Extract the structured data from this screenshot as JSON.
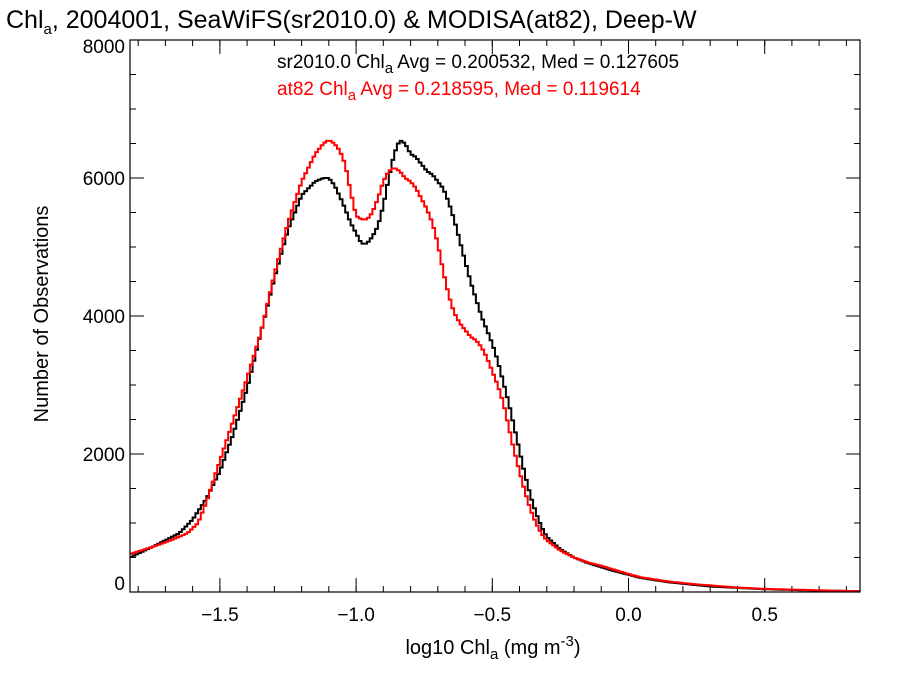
{
  "chart_data": {
    "type": "line",
    "title": {
      "pre": "Chl",
      "sub": "a",
      "post": ", 2004001, SeaWiFS(sr2010.0) & MODISA(at82), Deep-W"
    },
    "xlabel": {
      "pre": "log10 Chl",
      "sub": "a",
      "mid": " (mg m",
      "sup": "-3",
      "post": ")"
    },
    "ylabel": "Number of Observations",
    "xlim": [
      -1.83,
      0.85
    ],
    "ylim": [
      0,
      8000
    ],
    "x_ticks": [
      {
        "value": -1.5,
        "label": "−1.5"
      },
      {
        "value": -1.0,
        "label": "−1.0"
      },
      {
        "value": -0.5,
        "label": "−0.5"
      },
      {
        "value": 0.0,
        "label": "0.0"
      },
      {
        "value": 0.5,
        "label": "0.5"
      }
    ],
    "y_ticks": [
      {
        "value": 0,
        "label": "0"
      },
      {
        "value": 2000,
        "label": "2000"
      },
      {
        "value": 4000,
        "label": "4000"
      },
      {
        "value": 6000,
        "label": "6000"
      },
      {
        "value": 8000,
        "label": "8000"
      }
    ],
    "x_minor_step": 0.1,
    "y_minor_step": 500,
    "grid": false,
    "legend_position": "top-right",
    "series": [
      {
        "color": "#000000",
        "legend": {
          "pre": "sr2010.0 Chl",
          "sub": "a",
          "post": " Avg = 0.200532, Med = 0.127605"
        },
        "x": [
          -1.83,
          -1.75,
          -1.65,
          -1.6,
          -1.55,
          -1.5,
          -1.45,
          -1.4,
          -1.35,
          -1.3,
          -1.25,
          -1.2,
          -1.15,
          -1.12,
          -1.1,
          -1.08,
          -1.05,
          -1.02,
          -1.0,
          -0.98,
          -0.96,
          -0.94,
          -0.92,
          -0.9,
          -0.88,
          -0.86,
          -0.84,
          -0.82,
          -0.8,
          -0.78,
          -0.76,
          -0.74,
          -0.72,
          -0.7,
          -0.68,
          -0.66,
          -0.64,
          -0.62,
          -0.6,
          -0.58,
          -0.56,
          -0.54,
          -0.52,
          -0.5,
          -0.48,
          -0.46,
          -0.44,
          -0.42,
          -0.4,
          -0.38,
          -0.36,
          -0.34,
          -0.32,
          -0.3,
          -0.25,
          -0.2,
          -0.15,
          -0.1,
          -0.05,
          0.0,
          0.05,
          0.1,
          0.15,
          0.2,
          0.25,
          0.3,
          0.35,
          0.4,
          0.45,
          0.5,
          0.55,
          0.6,
          0.65,
          0.7,
          0.75,
          0.8,
          0.85
        ],
        "y": [
          500,
          650,
          850,
          1050,
          1350,
          1750,
          2300,
          2950,
          3750,
          4550,
          5250,
          5750,
          5950,
          6000,
          6000,
          5900,
          5650,
          5350,
          5200,
          5050,
          5050,
          5150,
          5300,
          5600,
          6000,
          6350,
          6550,
          6500,
          6350,
          6300,
          6200,
          6100,
          6050,
          5950,
          5850,
          5650,
          5400,
          5100,
          4800,
          4500,
          4250,
          4000,
          3800,
          3600,
          3350,
          3050,
          2750,
          2400,
          2050,
          1700,
          1400,
          1150,
          950,
          800,
          620,
          500,
          420,
          360,
          300,
          250,
          200,
          170,
          140,
          120,
          100,
          80,
          70,
          60,
          50,
          40,
          35,
          30,
          25,
          20,
          18,
          15,
          12
        ]
      },
      {
        "color": "#ff0000",
        "legend": {
          "pre": "at82 Chl",
          "sub": "a",
          "post": " Avg = 0.218595, Med = 0.119614"
        },
        "x": [
          -1.83,
          -1.75,
          -1.68,
          -1.62,
          -1.58,
          -1.55,
          -1.5,
          -1.45,
          -1.4,
          -1.35,
          -1.3,
          -1.25,
          -1.2,
          -1.15,
          -1.12,
          -1.1,
          -1.08,
          -1.06,
          -1.04,
          -1.02,
          -1.0,
          -0.98,
          -0.96,
          -0.94,
          -0.92,
          -0.9,
          -0.88,
          -0.86,
          -0.84,
          -0.82,
          -0.8,
          -0.78,
          -0.76,
          -0.74,
          -0.72,
          -0.7,
          -0.68,
          -0.66,
          -0.64,
          -0.62,
          -0.6,
          -0.58,
          -0.56,
          -0.54,
          -0.52,
          -0.5,
          -0.48,
          -0.46,
          -0.44,
          -0.42,
          -0.4,
          -0.38,
          -0.36,
          -0.34,
          -0.32,
          -0.3,
          -0.25,
          -0.2,
          -0.15,
          -0.1,
          -0.05,
          0.0,
          0.05,
          0.1,
          0.15,
          0.2,
          0.25,
          0.3,
          0.35,
          0.4,
          0.45,
          0.5,
          0.55,
          0.6,
          0.65,
          0.7,
          0.75,
          0.8,
          0.85
        ],
        "y": [
          550,
          650,
          750,
          850,
          1000,
          1300,
          1900,
          2500,
          3100,
          3750,
          4600,
          5350,
          5950,
          6350,
          6500,
          6550,
          6500,
          6400,
          6200,
          5800,
          5450,
          5400,
          5400,
          5500,
          5700,
          5950,
          6100,
          6150,
          6100,
          6000,
          5950,
          5850,
          5700,
          5550,
          5350,
          5050,
          4650,
          4300,
          4050,
          3900,
          3800,
          3700,
          3650,
          3550,
          3400,
          3200,
          3000,
          2750,
          2400,
          2050,
          1750,
          1450,
          1200,
          1000,
          850,
          750,
          600,
          500,
          430,
          380,
          320,
          260,
          210,
          180,
          150,
          130,
          110,
          95,
          80,
          65,
          55,
          45,
          40,
          35,
          30,
          25,
          20,
          15,
          12
        ]
      }
    ]
  }
}
